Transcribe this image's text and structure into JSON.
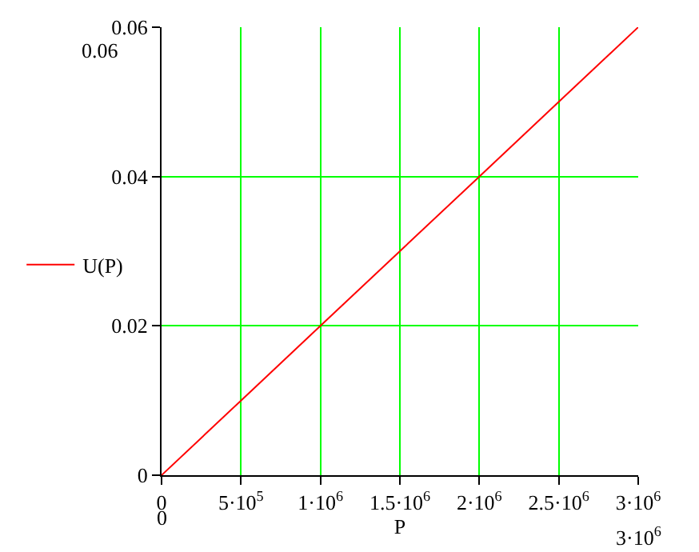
{
  "chart_data": {
    "type": "line",
    "xlabel": "P",
    "x": [
      0,
      500000,
      1000000,
      1500000,
      2000000,
      2500000,
      3000000
    ],
    "series": [
      {
        "name": "U(P)",
        "color": "#ff0000",
        "values": [
          0,
          0.01,
          0.02,
          0.03,
          0.04,
          0.05,
          0.06
        ]
      }
    ],
    "xlim": [
      0,
      3000000
    ],
    "xticks": [
      {
        "value": 0,
        "label": "0"
      },
      {
        "value": 500000,
        "label": "5·10$^{5}$"
      },
      {
        "value": 1000000,
        "label": "1·10$^{6}$"
      },
      {
        "value": 1500000,
        "label": "1.5·10$^{6}$"
      },
      {
        "value": 2000000,
        "label": "2·10$^{6}$"
      },
      {
        "value": 2500000,
        "label": "2.5·10$^{6}$"
      },
      {
        "value": 3000000,
        "label": "3·10$^{6}$"
      }
    ],
    "ylim": [
      0,
      0.06
    ],
    "yticks": [
      0,
      0.02,
      0.04,
      0.06
    ],
    "annotations": [
      "0.06",
      "0",
      "3·10$^{6}$"
    ],
    "grid": "#00ff00",
    "legend": "left",
    "marker": "none",
    "line_style": "solid"
  }
}
